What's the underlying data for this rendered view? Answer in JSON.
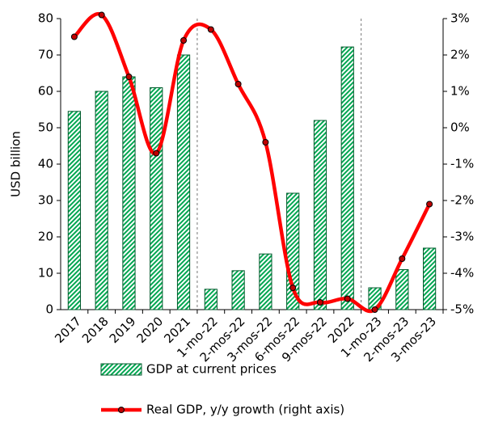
{
  "chart_data": {
    "type": "bar",
    "categories": [
      "2017",
      "2018",
      "2019",
      "2020",
      "2021",
      "1-mo-22",
      "2-mos-22",
      "3-mos-22",
      "6-mos-22",
      "9-mos-22",
      "2022",
      "1-mo-23",
      "2-mos-23",
      "3-mos-23"
    ],
    "ylabel": "USD billion",
    "ylim": [
      0,
      80
    ],
    "yticks": [
      0,
      10,
      20,
      30,
      40,
      50,
      60,
      70,
      80
    ],
    "y2lim": [
      -5,
      3
    ],
    "y2ticks": [
      {
        "value": -5,
        "label": "-5%"
      },
      {
        "value": -4,
        "label": "-4%"
      },
      {
        "value": -3,
        "label": "-3%"
      },
      {
        "value": -2,
        "label": "-2%"
      },
      {
        "value": -1,
        "label": "-1%"
      },
      {
        "value": 0,
        "label": "0%"
      },
      {
        "value": 1,
        "label": "1%"
      },
      {
        "value": 2,
        "label": "2%"
      },
      {
        "value": 3,
        "label": "3%"
      }
    ],
    "legend": "bottom",
    "series": [
      {
        "name": "GDP at current prices",
        "type": "bar",
        "color": "#00a651",
        "values": [
          54.5,
          60,
          64,
          61,
          70,
          5.6,
          10.7,
          15.3,
          32,
          52,
          72.2,
          6,
          11,
          16.9
        ]
      },
      {
        "name": "Real GDP, y/y growth (right axis)",
        "type": "line",
        "axis": "y2",
        "color": "#ff0000",
        "values": [
          2.5,
          3.1,
          1.4,
          -0.7,
          2.4,
          2.7,
          1.2,
          -0.4,
          -4.4,
          -4.8,
          -4.7,
          -5.0,
          -3.6,
          -2.1
        ]
      }
    ]
  }
}
